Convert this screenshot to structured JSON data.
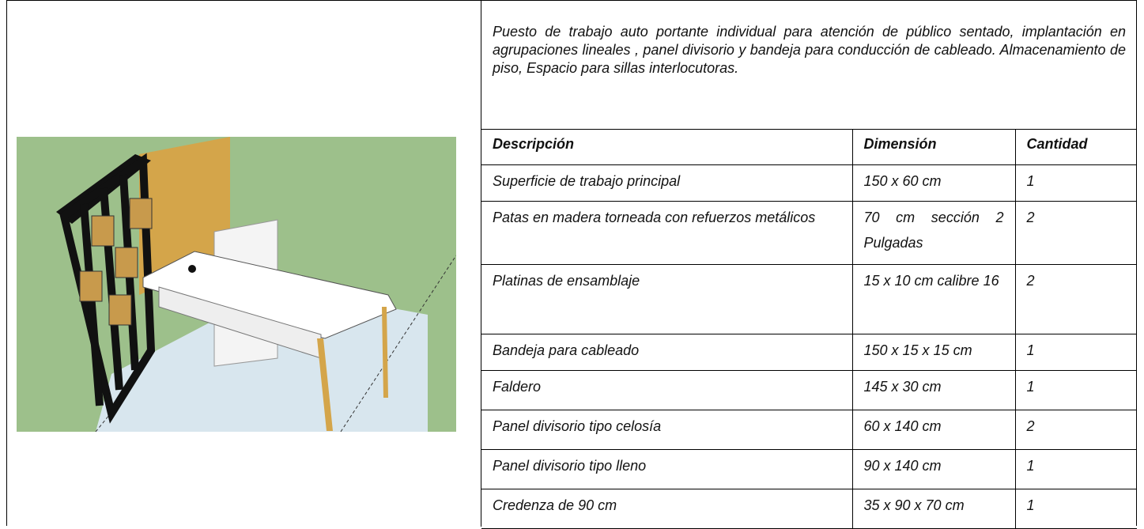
{
  "description": "Puesto de trabajo auto portante individual para atención de público sentado, implantación en agrupaciones lineales , panel divisorio y bandeja para conducción de cableado. Almacenamiento de piso, Espacio para sillas interlocutoras.",
  "table": {
    "headers": [
      "Descripción",
      "Dimensión",
      "Cantidad"
    ],
    "rows": [
      [
        "Superficie de trabajo principal",
        "150 x 60 cm",
        "1"
      ],
      [
        "Patas en madera torneada con refuerzos metálicos",
        "70 cm sección 2 Pulgadas",
        "2"
      ],
      [
        "Platinas de ensamblaje",
        "15 x 10 cm calibre 16",
        "2"
      ],
      [
        "Bandeja para cableado",
        "150 x 15 x 15 cm",
        "1"
      ],
      [
        "Faldero",
        "145 x 30 cm",
        "1"
      ],
      [
        "Panel divisorio tipo celosía",
        "60 x 140 cm",
        "2"
      ],
      [
        "Panel divisorio tipo lleno",
        "90 x 140 cm",
        "1"
      ],
      [
        "Credenza de 90 cm",
        "35 x 90 x 70 cm",
        "1"
      ]
    ]
  }
}
